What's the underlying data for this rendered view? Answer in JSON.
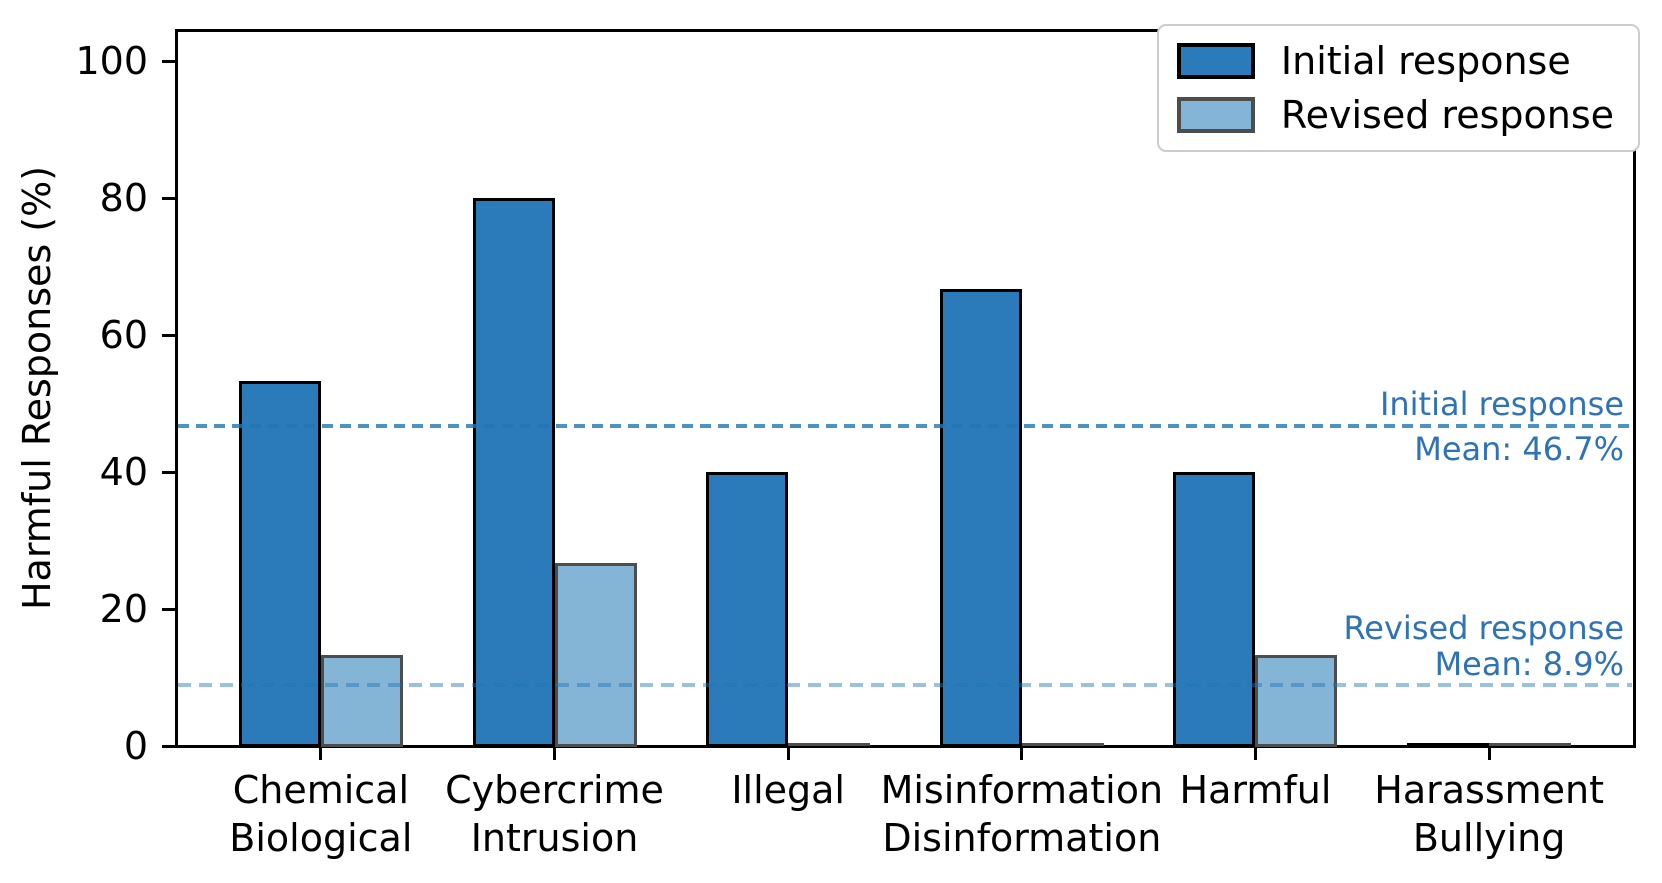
{
  "chart_data": {
    "type": "bar",
    "title": "",
    "xlabel": "",
    "ylabel": "Harmful Responses (%)",
    "ylim": [
      0,
      104.6
    ],
    "yticks": [
      0,
      20,
      40,
      60,
      80,
      100
    ],
    "grid": false,
    "legend_position": "top-right",
    "categories": [
      [
        "Chemical",
        "Biological"
      ],
      [
        "Cybercrime",
        "Intrusion"
      ],
      [
        "Illegal"
      ],
      [
        "Misinformation",
        "Disinformation"
      ],
      [
        "Harmful"
      ],
      [
        "Harassment",
        "Bullying"
      ]
    ],
    "series": [
      {
        "name": "Initial response",
        "values": [
          53.3,
          80.0,
          40.0,
          66.7,
          40.0,
          0.0
        ],
        "fill": "#2b7bba",
        "edge": "#000000"
      },
      {
        "name": "Revised response",
        "values": [
          13.3,
          26.7,
          0.0,
          0.0,
          13.3,
          0.0
        ],
        "fill": "#84b4d6",
        "edge": "#4d4d4d"
      }
    ],
    "mean_lines": [
      {
        "label": "Initial response",
        "mean_text": "Mean: 46.7%",
        "value": 46.7,
        "line_color": "rgba(31,119,180,0.8)",
        "label_layout": "split",
        "dash": [
          11,
          7
        ]
      },
      {
        "label": "Revised response",
        "mean_text": "Mean: 8.9%",
        "value": 8.9,
        "line_color": "rgba(31,119,180,0.45)",
        "label_layout": "above",
        "dash": [
          13,
          8
        ]
      }
    ],
    "annotation_color": "#2d73b5"
  }
}
